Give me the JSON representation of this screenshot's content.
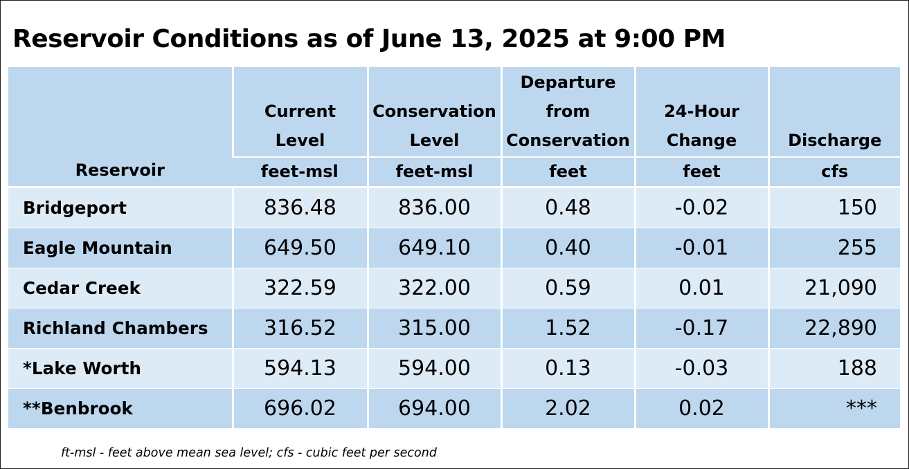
{
  "title": "Reservoir Conditions as of June 13, 2025 at 9:00 PM",
  "table": {
    "headers": [
      {
        "label_lines": [
          "Reservoir"
        ],
        "unit": ""
      },
      {
        "label_lines": [
          "Current",
          "Level"
        ],
        "unit": "feet-msl"
      },
      {
        "label_lines": [
          "Conservation",
          "Level"
        ],
        "unit": "feet-msl"
      },
      {
        "label_lines": [
          "Departure",
          "from",
          "Conservation"
        ],
        "unit": "feet"
      },
      {
        "label_lines": [
          "24-Hour",
          "Change"
        ],
        "unit": "feet"
      },
      {
        "label_lines": [
          "Discharge"
        ],
        "unit": "cfs"
      }
    ],
    "rows": [
      {
        "reservoir": "Bridgeport",
        "current": "836.48",
        "conservation": "836.00",
        "departure": "0.48",
        "change": "-0.02",
        "discharge": "150"
      },
      {
        "reservoir": "Eagle Mountain",
        "current": "649.50",
        "conservation": "649.10",
        "departure": "0.40",
        "change": "-0.01",
        "discharge": "255"
      },
      {
        "reservoir": "Cedar Creek",
        "current": "322.59",
        "conservation": "322.00",
        "departure": "0.59",
        "change": "0.01",
        "discharge": "21,090"
      },
      {
        "reservoir": "Richland Chambers",
        "current": "316.52",
        "conservation": "315.00",
        "departure": "1.52",
        "change": "-0.17",
        "discharge": "22,890"
      },
      {
        "reservoir": "*Lake Worth",
        "current": "594.13",
        "conservation": "594.00",
        "departure": "0.13",
        "change": "-0.03",
        "discharge": "188"
      },
      {
        "reservoir": "**Benbrook",
        "current": "696.02",
        "conservation": "694.00",
        "departure": "2.02",
        "change": "0.02",
        "discharge": "***"
      }
    ]
  },
  "footnote": "ft-msl - feet above mean sea level; cfs - cubic feet per second",
  "colors": {
    "header_bg": "#bdd7ee",
    "row_light": "#ddebf7",
    "row_dark": "#bdd7ee"
  }
}
